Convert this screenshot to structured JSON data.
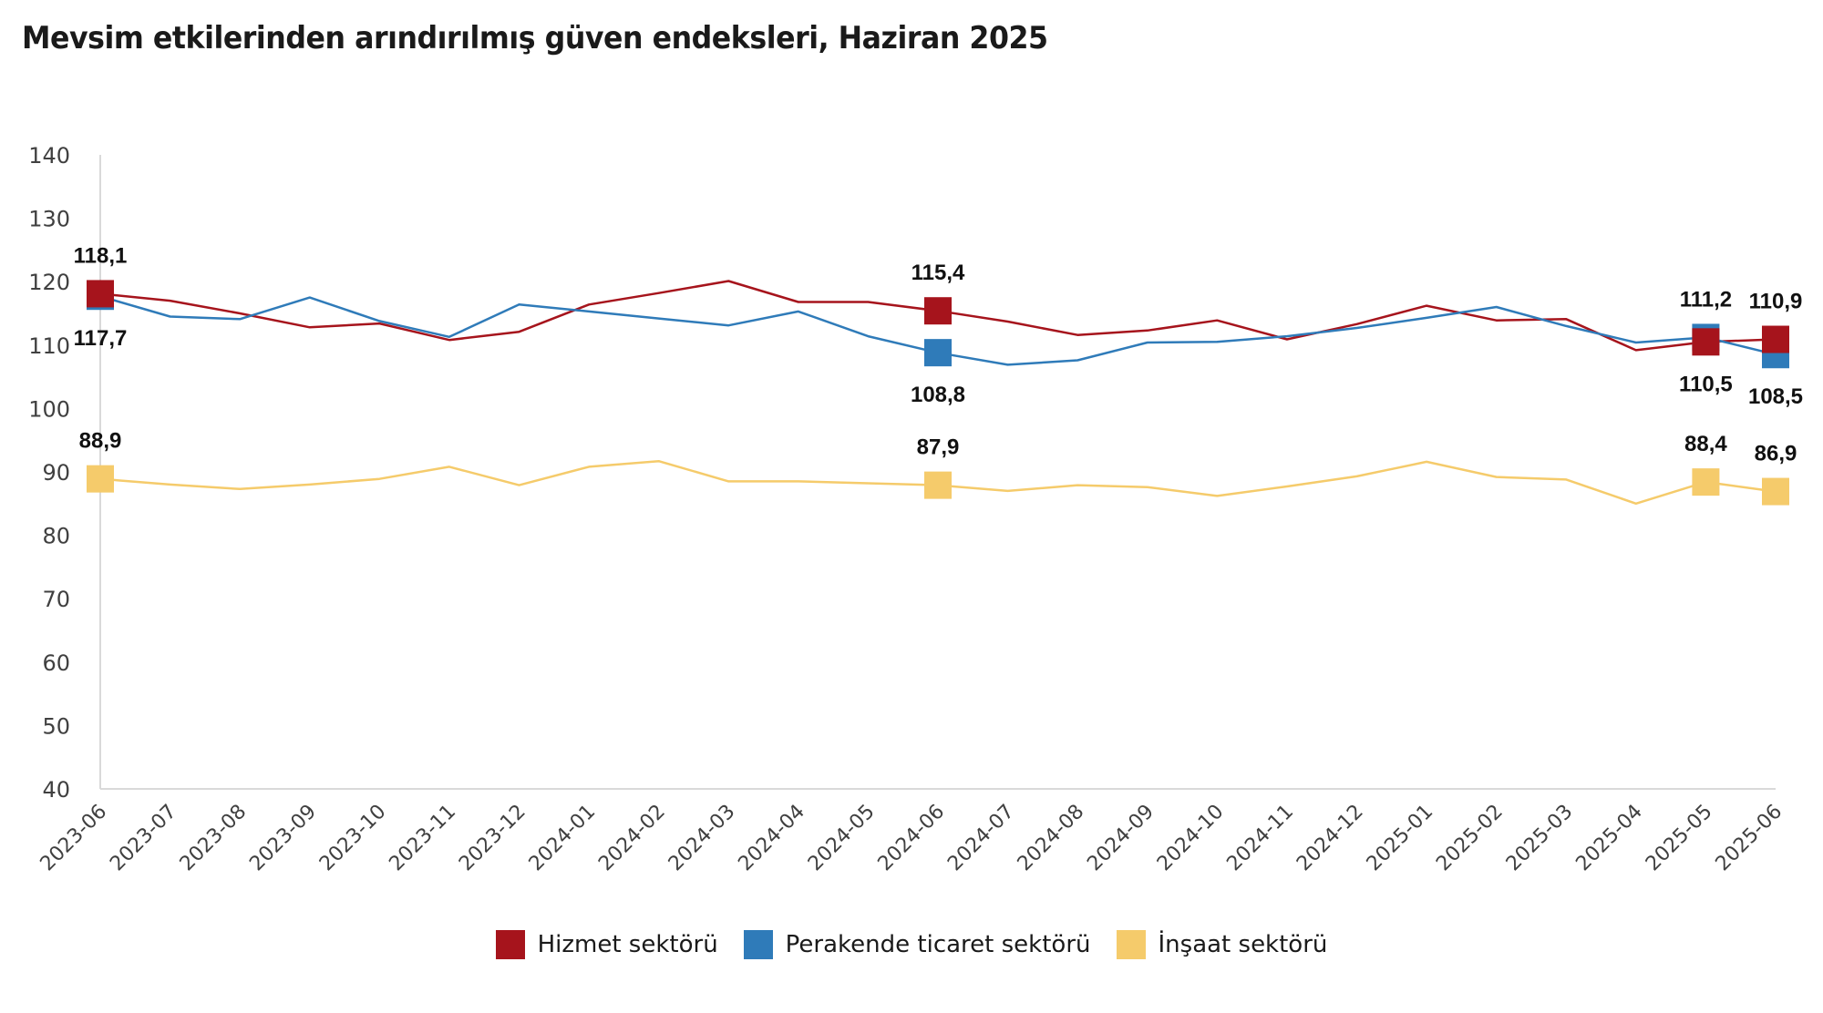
{
  "title": "Mevsim etkilerinden arındırılmış güven endeksleri, Haziran 2025",
  "chart_data": {
    "type": "line",
    "title": "Mevsim etkilerinden arındırılmış güven endeksleri, Haziran 2025",
    "xlabel": "",
    "ylabel": "",
    "ylim": [
      40,
      140
    ],
    "yticks": [
      140,
      130,
      120,
      110,
      100,
      90,
      80,
      70,
      60,
      50,
      40
    ],
    "grid": false,
    "legend_position": "bottom",
    "categories": [
      "2023-06",
      "2023-07",
      "2023-08",
      "2023-09",
      "2023-10",
      "2023-11",
      "2023-12",
      "2024-01",
      "2024-02",
      "2024-03",
      "2024-04",
      "2024-05",
      "2024-06",
      "2024-07",
      "2024-08",
      "2024-09",
      "2024-10",
      "2024-11",
      "2024-12",
      "2025-01",
      "2025-02",
      "2025-03",
      "2025-04",
      "2025-05",
      "2025-06"
    ],
    "series": [
      {
        "name": "Hizmet sektörü",
        "color": "#A6141C",
        "values": [
          118.1,
          117.0,
          115.0,
          112.8,
          113.4,
          110.8,
          112.1,
          116.4,
          118.2,
          120.1,
          116.8,
          116.8,
          115.4,
          113.7,
          111.6,
          112.3,
          113.9,
          110.9,
          113.3,
          116.2,
          113.9,
          114.1,
          109.2,
          110.5,
          110.9
        ],
        "labeled": [
          {
            "index": 0,
            "text": "118,1",
            "position": "above"
          },
          {
            "index": 12,
            "text": "115,4",
            "position": "above"
          },
          {
            "index": 23,
            "text": "110,5",
            "position": "below"
          },
          {
            "index": 24,
            "text": "110,9",
            "position": "above"
          }
        ]
      },
      {
        "name": "Perakende ticaret sektörü",
        "color": "#2F7BB9",
        "values": [
          117.7,
          114.5,
          114.1,
          117.5,
          113.8,
          111.3,
          116.4,
          115.3,
          114.2,
          113.1,
          115.3,
          111.4,
          108.8,
          106.9,
          107.6,
          110.4,
          110.5,
          111.4,
          112.7,
          114.3,
          116.0,
          113.0,
          110.4,
          111.2,
          108.5
        ],
        "labeled": [
          {
            "index": 0,
            "text": "117,7",
            "position": "below"
          },
          {
            "index": 12,
            "text": "108,8",
            "position": "below"
          },
          {
            "index": 23,
            "text": "111,2",
            "position": "above"
          },
          {
            "index": 24,
            "text": "108,5",
            "position": "below"
          }
        ]
      },
      {
        "name": "İnşaat sektörü",
        "color": "#F5CB6B",
        "values": [
          88.9,
          88.0,
          87.3,
          88.0,
          88.9,
          90.8,
          87.9,
          90.8,
          91.7,
          88.5,
          88.5,
          88.2,
          87.9,
          87.0,
          87.9,
          87.6,
          86.2,
          87.7,
          89.3,
          91.6,
          89.2,
          88.8,
          85.0,
          88.4,
          86.9
        ],
        "labeled": [
          {
            "index": 0,
            "text": "88,9",
            "position": "above"
          },
          {
            "index": 12,
            "text": "87,9",
            "position": "above"
          },
          {
            "index": 23,
            "text": "88,4",
            "position": "above"
          },
          {
            "index": 24,
            "text": "86,9",
            "position": "above"
          }
        ]
      }
    ]
  }
}
